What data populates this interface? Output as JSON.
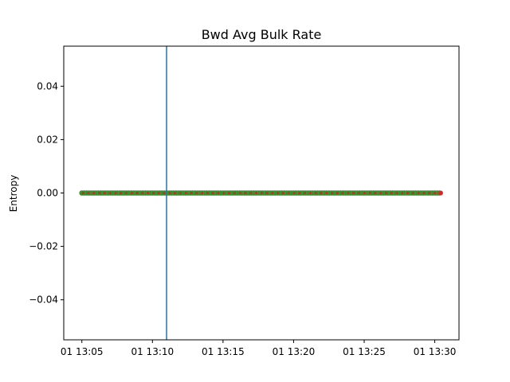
{
  "chart_data": {
    "type": "scatter",
    "title": "Bwd Avg Bulk Rate",
    "xlabel": "",
    "ylabel": "Entropy",
    "x_range": [
      "01 13:03:43",
      "01 13:31:43"
    ],
    "ylim": [
      -0.055,
      0.055
    ],
    "x_ticks": [
      {
        "time": "01 13:05",
        "label": "01 13:05"
      },
      {
        "time": "01 13:10",
        "label": "01 13:10"
      },
      {
        "time": "01 13:15",
        "label": "01 13:15"
      },
      {
        "time": "01 13:20",
        "label": "01 13:20"
      },
      {
        "time": "01 13:25",
        "label": "01 13:25"
      },
      {
        "time": "01 13:30",
        "label": "01 13:30"
      }
    ],
    "y_ticks": [
      {
        "value": 0.04,
        "label": "0.04"
      },
      {
        "value": 0.02,
        "label": "0.02"
      },
      {
        "value": 0.0,
        "label": "0.00"
      },
      {
        "value": -0.02,
        "label": "−0.02"
      },
      {
        "value": -0.04,
        "label": "−0.04"
      }
    ],
    "series": [
      {
        "marker_color": "#2ca02c",
        "edge_color": "#556b2f",
        "accent_color": "#d62728",
        "x_start": "01 13:05:00",
        "x_end": "01 13:30:25",
        "point_interval_seconds": 10,
        "y_value": 0.0
      }
    ],
    "vertical_line": {
      "x": "01 13:11:00",
      "color": "#1f77b4"
    },
    "grid": false,
    "legend": "none"
  }
}
